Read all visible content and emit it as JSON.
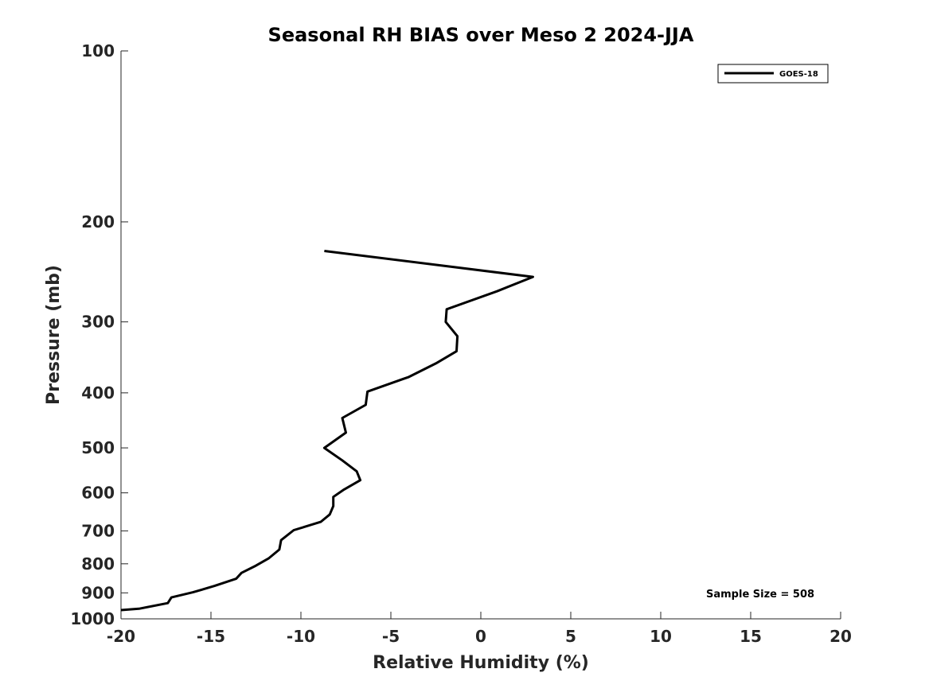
{
  "chart_data": {
    "type": "line",
    "title": "Seasonal RH BIAS over Meso 2  2024-JJA",
    "xlabel": "Relative Humidity (%)",
    "ylabel": "Pressure (mb)",
    "xlim": [
      -20,
      20
    ],
    "ylim": [
      100,
      1000
    ],
    "yscale": "log",
    "y_reversed": true,
    "x_ticks": [
      -20,
      -15,
      -10,
      -5,
      0,
      5,
      10,
      15,
      20
    ],
    "y_ticks": [
      100,
      200,
      300,
      400,
      500,
      600,
      700,
      800,
      900,
      1000
    ],
    "grid": false,
    "legend_position": "top-right",
    "series": [
      {
        "name": "GOES-18",
        "color": "#000000",
        "points": [
          {
            "x": -8.7,
            "y": 225
          },
          {
            "x": 2.9,
            "y": 250
          },
          {
            "x": 0.9,
            "y": 265
          },
          {
            "x": -1.9,
            "y": 285
          },
          {
            "x": -1.95,
            "y": 300
          },
          {
            "x": -1.3,
            "y": 318
          },
          {
            "x": -1.35,
            "y": 338
          },
          {
            "x": -2.5,
            "y": 355
          },
          {
            "x": -4.0,
            "y": 375
          },
          {
            "x": -6.3,
            "y": 398
          },
          {
            "x": -6.4,
            "y": 420
          },
          {
            "x": -7.7,
            "y": 443
          },
          {
            "x": -7.5,
            "y": 470
          },
          {
            "x": -8.7,
            "y": 500
          },
          {
            "x": -7.7,
            "y": 526
          },
          {
            "x": -6.9,
            "y": 550
          },
          {
            "x": -6.7,
            "y": 570
          },
          {
            "x": -7.6,
            "y": 592
          },
          {
            "x": -8.2,
            "y": 610
          },
          {
            "x": -8.2,
            "y": 633
          },
          {
            "x": -8.4,
            "y": 655
          },
          {
            "x": -8.9,
            "y": 675
          },
          {
            "x": -10.4,
            "y": 698
          },
          {
            "x": -11.1,
            "y": 727
          },
          {
            "x": -11.2,
            "y": 755
          },
          {
            "x": -11.8,
            "y": 783
          },
          {
            "x": -12.5,
            "y": 806
          },
          {
            "x": -13.3,
            "y": 830
          },
          {
            "x": -13.6,
            "y": 850
          },
          {
            "x": -14.8,
            "y": 875
          },
          {
            "x": -16.0,
            "y": 898
          },
          {
            "x": -17.2,
            "y": 917
          },
          {
            "x": -17.4,
            "y": 938
          },
          {
            "x": -19.0,
            "y": 960
          },
          {
            "x": -20.0,
            "y": 965
          }
        ]
      }
    ],
    "annotations": [
      "Sample Size = 508"
    ]
  }
}
